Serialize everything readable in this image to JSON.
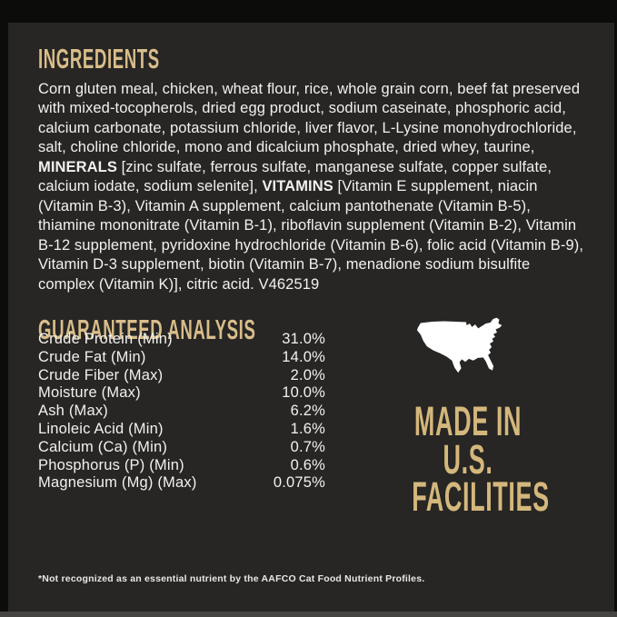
{
  "label": {
    "colors": {
      "outer_bg": "#0c0c0b",
      "panel_bg": "#272624",
      "heading_gold": "#d9bd8a",
      "made_in_gold": "#d4b77c",
      "body_text": "#f2f1ee",
      "map_white": "#ffffff"
    },
    "ingredients": {
      "heading": "INGREDIENTS",
      "segments": [
        {
          "text": "Corn gluten meal, chicken, wheat flour, rice, whole grain corn, beef fat preserved with mixed-tocopherols, dried egg product, sodium caseinate, phosphoric acid, calcium carbonate, potassium chloride, liver flavor, L-Lysine monohydrochloride, salt, choline chloride, mono and dicalcium phosphate, dried whey, taurine, ",
          "bold": false
        },
        {
          "text": "MINERALS",
          "bold": true
        },
        {
          "text": " [zinc sulfate, ferrous sulfate, manganese sulfate, copper sulfate, calcium iodate, sodium selenite], ",
          "bold": false
        },
        {
          "text": "VITAMINS",
          "bold": true
        },
        {
          "text": " [Vitamin E supplement, niacin (Vitamin B-3), Vitamin A supplement, calcium pantothenate (Vitamin B-5), thiamine mononitrate (Vitamin B-1), riboflavin supplement (Vitamin B-2), Vitamin B-12 supplement, pyridoxine hydrochloride (Vitamin B-6), folic acid (Vitamin B-9), Vitamin D-3 supplement, biotin (Vitamin B-7), menadione sodium bisulfite complex (Vitamin K)], citric acid. V462519",
          "bold": false
        }
      ]
    },
    "guaranteed_analysis": {
      "heading": "GUARANTEED ANALYSIS",
      "rows": [
        {
          "label": "Crude Protein (Min)",
          "value": "31.0%"
        },
        {
          "label": "Crude Fat (Min)",
          "value": "14.0%"
        },
        {
          "label": "Crude Fiber (Max)",
          "value": "2.0%"
        },
        {
          "label": "Moisture (Max)",
          "value": "10.0%"
        },
        {
          "label": "Ash (Max)",
          "value": "6.2%"
        },
        {
          "label": "Linoleic Acid (Min)",
          "value": "1.6%"
        },
        {
          "label": "Calcium (Ca) (Min)",
          "value": "0.7%"
        },
        {
          "label": "Phosphorus (P) (Min)",
          "value": "0.6%"
        },
        {
          "label": "Magnesium (Mg) (Max)",
          "value": "0.075%"
        }
      ]
    },
    "made_in": {
      "icon": "usa-map-icon",
      "lines": [
        "MADE IN",
        "U.S.",
        "FACILITIES"
      ]
    },
    "footnote": "*Not recognized as an essential nutrient by the AAFCO Cat Food Nutrient Profiles."
  }
}
